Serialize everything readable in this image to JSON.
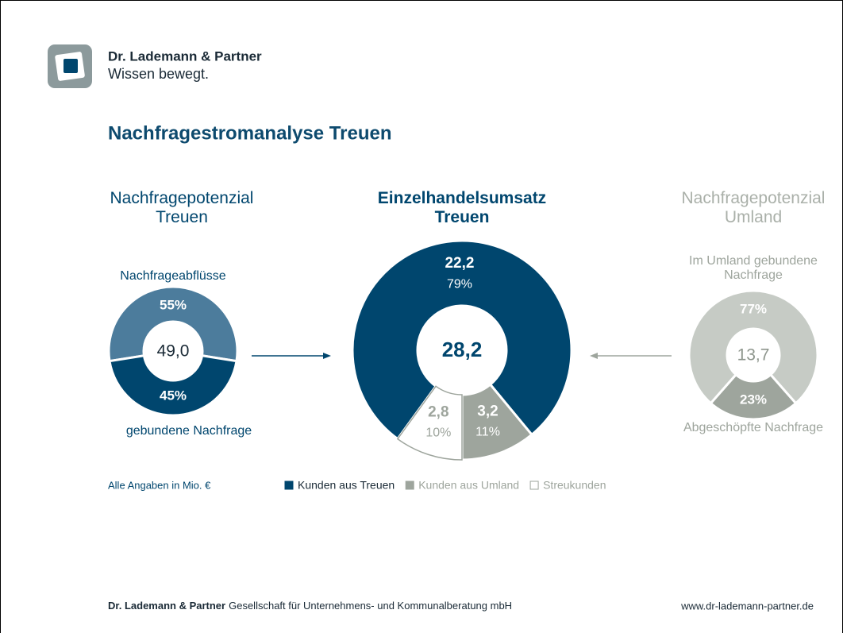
{
  "header": {
    "brand": "Dr. Lademann & Partner",
    "tagline": "Wissen bewegt."
  },
  "title": "Nachfragestromanalyse Treuen",
  "chart_data": [
    {
      "type": "pie",
      "title": "Nachfragepotenzial Treuen",
      "categories": [
        "Nachfrageabflüsse",
        "gebundene Nachfrage"
      ],
      "values": [
        55,
        45
      ],
      "value_labels": [
        "55%",
        "45%"
      ],
      "colors": [
        "#4c7c9c",
        "#00466e"
      ],
      "center_value": 49.0,
      "center_label": "49,0"
    },
    {
      "type": "pie",
      "title": "Einzelhandelsumsatz Treuen",
      "categories": [
        "Kunden aus Treuen",
        "Kunden aus Umland",
        "Streukunden"
      ],
      "values": [
        79,
        11,
        10
      ],
      "value_labels": [
        "79%",
        "11%",
        "10%"
      ],
      "amounts": [
        22.2,
        3.2,
        2.8
      ],
      "amount_labels": [
        "22,2",
        "3,2",
        "2,8"
      ],
      "colors": [
        "#00466e",
        "#9ea59d",
        "#ffffff"
      ],
      "center_value": 28.2,
      "center_label": "28,2"
    },
    {
      "type": "pie",
      "title": "Nachfragepotenzial Umland",
      "categories": [
        "Im Umland gebundene Nachfrage",
        "Abgeschöpfte Nachfrage"
      ],
      "values": [
        77,
        23
      ],
      "value_labels": [
        "77%",
        "23%"
      ],
      "colors": [
        "#c6cbc5",
        "#9ea59d"
      ],
      "center_value": 13.7,
      "center_label": "13,7"
    }
  ],
  "note": "Alle Angaben in Mio. €",
  "footer": {
    "company": "Dr. Lademann & Partner",
    "description": "Gesellschaft für Unternehmens- und Kommunalberatung mbH",
    "url": "www.dr-lademann-partner.de"
  }
}
